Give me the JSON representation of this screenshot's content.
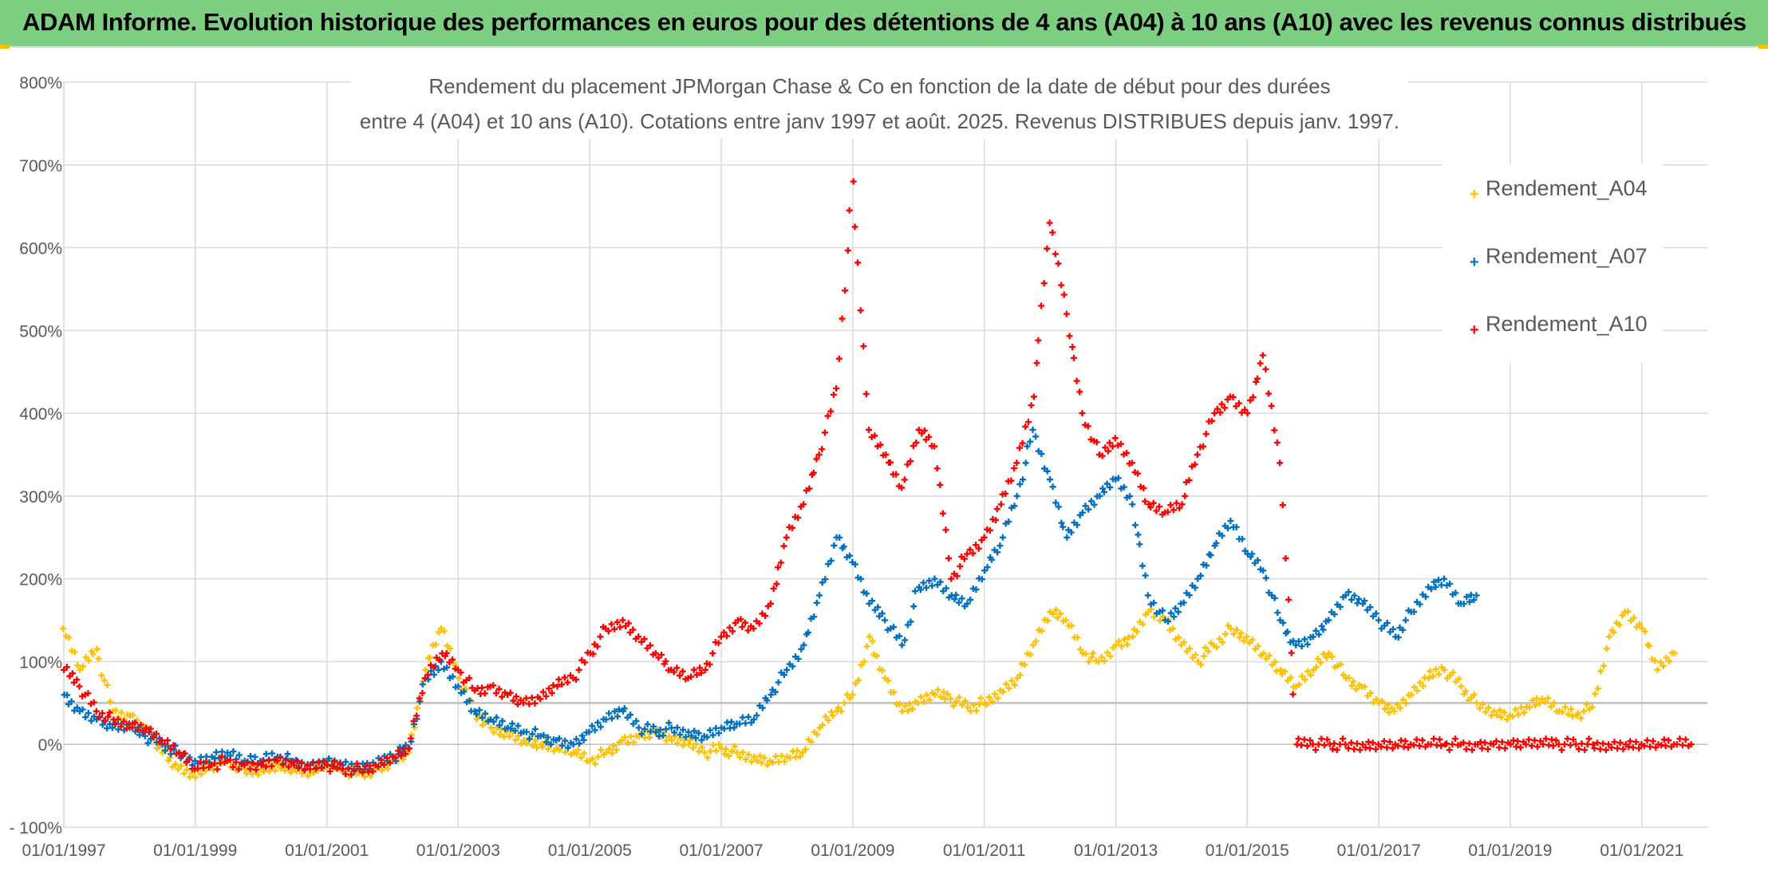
{
  "banner": {
    "title": "ADAM Informe. Evolution historique des performances en euros pour des détentions de 4 ans (A04) à 10 ans (A10) avec les revenus connus distribués"
  },
  "colors": {
    "banner": "#7ccf80",
    "A04": "#ffc000",
    "A07": "#0070c0",
    "A10": "#ff0000",
    "grid": "#d9d9d9",
    "text": "#595959"
  },
  "chart_data": {
    "type": "scatter",
    "title": "Rendement du placement JPMorgan Chase & Co en fonction de la date de début pour des durées",
    "subtitle": "entre 4 (A04) et 10 ans (A10). Cotations entre janv 1997 et août. 2025. Revenus DISTRIBUES depuis janv. 1997.",
    "xlabel": "",
    "ylabel": "",
    "x_start": "1997-01-01",
    "x_end": "2021-12-31",
    "xlim": [
      "1997-01-01",
      "2021-12-31"
    ],
    "ylim": [
      -100,
      800
    ],
    "y_ticks": [
      -100,
      0,
      100,
      200,
      300,
      400,
      500,
      600,
      700,
      800
    ],
    "y_tick_labels": [
      "- 100%",
      "0%",
      "100%",
      "200%",
      "300%",
      "400%",
      "500%",
      "600%",
      "700%",
      "800%"
    ],
    "x_ticks": [
      "1997-01-01",
      "1999-01-01",
      "2001-01-01",
      "2003-01-01",
      "2005-01-01",
      "2007-01-01",
      "2009-01-01",
      "2011-01-01",
      "2013-01-01",
      "2015-01-01",
      "2017-01-01",
      "2019-01-01",
      "2021-01-01"
    ],
    "x_tick_labels": [
      "01/01/1997",
      "01/01/1999",
      "01/01/2001",
      "01/01/2003",
      "01/01/2005",
      "01/01/2007",
      "01/01/2009",
      "01/01/2011",
      "01/01/2013",
      "01/01/2015",
      "01/01/2017",
      "01/01/2019",
      "01/01/2021"
    ],
    "reference_line": 50,
    "grid": true,
    "legend_position": "top-right",
    "series": [
      {
        "name": "Rendement_A04",
        "marker": "+",
        "x": [
          "1997-01-01",
          "1997-04-01",
          "1997-07-01",
          "1997-10-01",
          "1998-01-01",
          "1998-04-01",
          "1998-07-01",
          "1998-10-01",
          "1999-01-01",
          "1999-04-01",
          "1999-07-01",
          "1999-10-01",
          "2000-01-01",
          "2000-04-01",
          "2000-07-01",
          "2000-10-01",
          "2001-01-01",
          "2001-04-01",
          "2001-07-01",
          "2001-10-01",
          "2002-01-01",
          "2002-04-01",
          "2002-07-01",
          "2002-10-01",
          "2003-01-01",
          "2003-04-01",
          "2003-07-01",
          "2003-10-01",
          "2004-01-01",
          "2004-04-01",
          "2004-07-01",
          "2004-10-01",
          "2005-01-01",
          "2005-04-01",
          "2005-07-01",
          "2005-10-01",
          "2006-01-01",
          "2006-04-01",
          "2006-07-01",
          "2006-10-01",
          "2007-01-01",
          "2007-04-01",
          "2007-07-01",
          "2007-10-01",
          "2008-01-01",
          "2008-04-01",
          "2008-07-01",
          "2008-10-01",
          "2009-01-01",
          "2009-04-01",
          "2009-07-01",
          "2009-10-01",
          "2010-01-01",
          "2010-04-01",
          "2010-07-01",
          "2010-10-01",
          "2011-01-01",
          "2011-04-01",
          "2011-07-01",
          "2011-10-01",
          "2012-01-01",
          "2012-04-01",
          "2012-07-01",
          "2012-10-01",
          "2013-01-01",
          "2013-04-01",
          "2013-07-01",
          "2013-10-01",
          "2014-01-01",
          "2014-04-01",
          "2014-07-01",
          "2014-10-01",
          "2015-01-01",
          "2015-04-01",
          "2015-07-01",
          "2015-10-01",
          "2016-01-01",
          "2016-04-01",
          "2016-07-01",
          "2016-10-01",
          "2017-01-01",
          "2017-04-01",
          "2017-07-01",
          "2017-10-01",
          "2018-01-01",
          "2018-04-01",
          "2018-07-01",
          "2018-10-01",
          "2019-01-01",
          "2019-04-01",
          "2019-07-01",
          "2019-10-01",
          "2020-01-01",
          "2020-04-01",
          "2020-07-01",
          "2020-10-01",
          "2021-01-01",
          "2021-04-01",
          "2021-07-01"
        ],
        "values": [
          140,
          90,
          115,
          40,
          35,
          20,
          -10,
          -30,
          -40,
          -25,
          -20,
          -30,
          -30,
          -25,
          -30,
          -35,
          -25,
          -30,
          -35,
          -30,
          -20,
          -10,
          90,
          140,
          80,
          40,
          20,
          15,
          5,
          0,
          -5,
          -10,
          -20,
          -10,
          5,
          10,
          15,
          5,
          0,
          -10,
          -5,
          -10,
          -15,
          -20,
          -15,
          -10,
          20,
          40,
          60,
          130,
          80,
          40,
          50,
          60,
          55,
          45,
          50,
          65,
          80,
          120,
          160,
          150,
          110,
          100,
          120,
          130,
          160,
          150,
          120,
          100,
          120,
          140,
          130,
          110,
          90,
          70,
          90,
          110,
          80,
          70,
          50,
          40,
          60,
          80,
          90,
          70,
          50,
          40,
          35,
          45,
          55,
          40,
          35,
          45,
          130,
          160,
          140,
          90,
          110
        ]
      },
      {
        "name": "Rendement_A07",
        "marker": "+",
        "x": [
          "1997-01-01",
          "1997-04-01",
          "1997-07-01",
          "1997-10-01",
          "1998-01-01",
          "1998-04-01",
          "1998-07-01",
          "1998-10-01",
          "1999-01-01",
          "1999-04-01",
          "1999-07-01",
          "1999-10-01",
          "2000-01-01",
          "2000-04-01",
          "2000-07-01",
          "2000-10-01",
          "2001-01-01",
          "2001-04-01",
          "2001-07-01",
          "2001-10-01",
          "2002-01-01",
          "2002-04-01",
          "2002-07-01",
          "2002-10-01",
          "2003-01-01",
          "2003-04-01",
          "2003-07-01",
          "2003-10-01",
          "2004-01-01",
          "2004-04-01",
          "2004-07-01",
          "2004-10-01",
          "2005-01-01",
          "2005-04-01",
          "2005-07-01",
          "2005-10-01",
          "2006-01-01",
          "2006-04-01",
          "2006-07-01",
          "2006-10-01",
          "2007-01-01",
          "2007-04-01",
          "2007-07-01",
          "2007-10-01",
          "2008-01-01",
          "2008-04-01",
          "2008-07-01",
          "2008-10-01",
          "2009-01-01",
          "2009-04-01",
          "2009-07-01",
          "2009-10-01",
          "2010-01-01",
          "2010-04-01",
          "2010-07-01",
          "2010-10-01",
          "2011-01-01",
          "2011-04-01",
          "2011-07-01",
          "2011-10-01",
          "2012-01-01",
          "2012-04-01",
          "2012-07-01",
          "2012-10-01",
          "2013-01-01",
          "2013-04-01",
          "2013-07-01",
          "2013-10-01",
          "2014-01-01",
          "2014-04-01",
          "2014-07-01",
          "2014-10-01",
          "2015-01-01",
          "2015-04-01",
          "2015-07-01",
          "2015-10-01",
          "2016-01-01",
          "2016-04-01",
          "2016-07-01",
          "2016-10-01",
          "2017-01-01",
          "2017-04-01",
          "2017-07-01",
          "2017-10-01",
          "2018-01-01",
          "2018-04-01",
          "2018-07-01"
        ],
        "values": [
          60,
          40,
          30,
          20,
          20,
          10,
          0,
          -10,
          -20,
          -15,
          -10,
          -20,
          -20,
          -15,
          -20,
          -25,
          -20,
          -25,
          -30,
          -25,
          -15,
          -5,
          80,
          100,
          70,
          40,
          30,
          20,
          15,
          10,
          5,
          0,
          15,
          30,
          40,
          20,
          15,
          20,
          15,
          10,
          20,
          25,
          30,
          60,
          90,
          120,
          180,
          250,
          220,
          170,
          150,
          120,
          190,
          200,
          180,
          170,
          210,
          240,
          300,
          380,
          320,
          250,
          280,
          300,
          320,
          290,
          180,
          150,
          170,
          200,
          240,
          270,
          230,
          210,
          150,
          120,
          130,
          150,
          180,
          170,
          150,
          130,
          160,
          190,
          200,
          170,
          180
        ]
      },
      {
        "name": "Rendement_A10",
        "marker": "+",
        "x": [
          "1997-01-01",
          "1997-04-01",
          "1997-07-01",
          "1997-10-01",
          "1998-01-01",
          "1998-04-01",
          "1998-07-01",
          "1998-10-01",
          "1999-01-01",
          "1999-04-01",
          "1999-07-01",
          "1999-10-01",
          "2000-01-01",
          "2000-04-01",
          "2000-07-01",
          "2000-10-01",
          "2001-01-01",
          "2001-04-01",
          "2001-07-01",
          "2001-10-01",
          "2002-01-01",
          "2002-04-01",
          "2002-07-01",
          "2002-10-01",
          "2003-01-01",
          "2003-04-01",
          "2003-07-01",
          "2003-10-01",
          "2004-01-01",
          "2004-04-01",
          "2004-07-01",
          "2004-10-01",
          "2005-01-01",
          "2005-04-01",
          "2005-07-01",
          "2005-10-01",
          "2006-01-01",
          "2006-04-01",
          "2006-07-01",
          "2006-10-01",
          "2007-01-01",
          "2007-04-01",
          "2007-07-01",
          "2007-10-01",
          "2008-01-01",
          "2008-04-01",
          "2008-07-01",
          "2008-10-01",
          "2009-01-01",
          "2009-04-01",
          "2009-07-01",
          "2009-10-01",
          "2010-01-01",
          "2010-04-01",
          "2010-07-01",
          "2010-10-01",
          "2011-01-01",
          "2011-04-01",
          "2011-07-01",
          "2011-10-01",
          "2012-01-01",
          "2012-04-01",
          "2012-07-01",
          "2012-10-01",
          "2013-01-01",
          "2013-04-01",
          "2013-07-01",
          "2013-10-01",
          "2014-01-01",
          "2014-04-01",
          "2014-07-01",
          "2014-10-01",
          "2015-01-01",
          "2015-04-01",
          "2015-07-01",
          "2015-10-01",
          "2016-01-01",
          "2016-04-01",
          "2016-07-01",
          "2016-10-01",
          "2017-01-01",
          "2017-04-01",
          "2017-07-01",
          "2017-10-01",
          "2018-01-01",
          "2018-04-01",
          "2018-07-01",
          "2018-10-01",
          "2019-01-01",
          "2019-04-01",
          "2019-07-01",
          "2019-10-01",
          "2020-01-01",
          "2020-04-01",
          "2020-07-01",
          "2020-10-01",
          "2021-01-01",
          "2021-04-01",
          "2021-07-01",
          "2021-10-01"
        ],
        "values": [
          90,
          70,
          40,
          30,
          25,
          20,
          5,
          -10,
          -30,
          -25,
          -20,
          -25,
          -25,
          -20,
          -25,
          -30,
          -25,
          -30,
          -30,
          -25,
          -15,
          -5,
          80,
          110,
          90,
          65,
          70,
          60,
          50,
          55,
          70,
          80,
          110,
          140,
          150,
          130,
          110,
          90,
          80,
          90,
          130,
          150,
          140,
          170,
          250,
          290,
          350,
          430,
          680,
          380,
          350,
          310,
          380,
          360,
          200,
          230,
          250,
          290,
          340,
          420,
          630,
          520,
          400,
          350,
          370,
          340,
          290,
          280,
          290,
          350,
          400,
          420,
          400,
          470,
          340,
          0,
          0,
          0,
          0,
          0,
          0,
          0,
          0,
          0,
          0,
          0,
          0,
          0,
          0,
          0,
          0,
          0,
          0,
          0,
          0,
          0,
          0,
          0,
          0,
          0
        ]
      }
    ]
  }
}
